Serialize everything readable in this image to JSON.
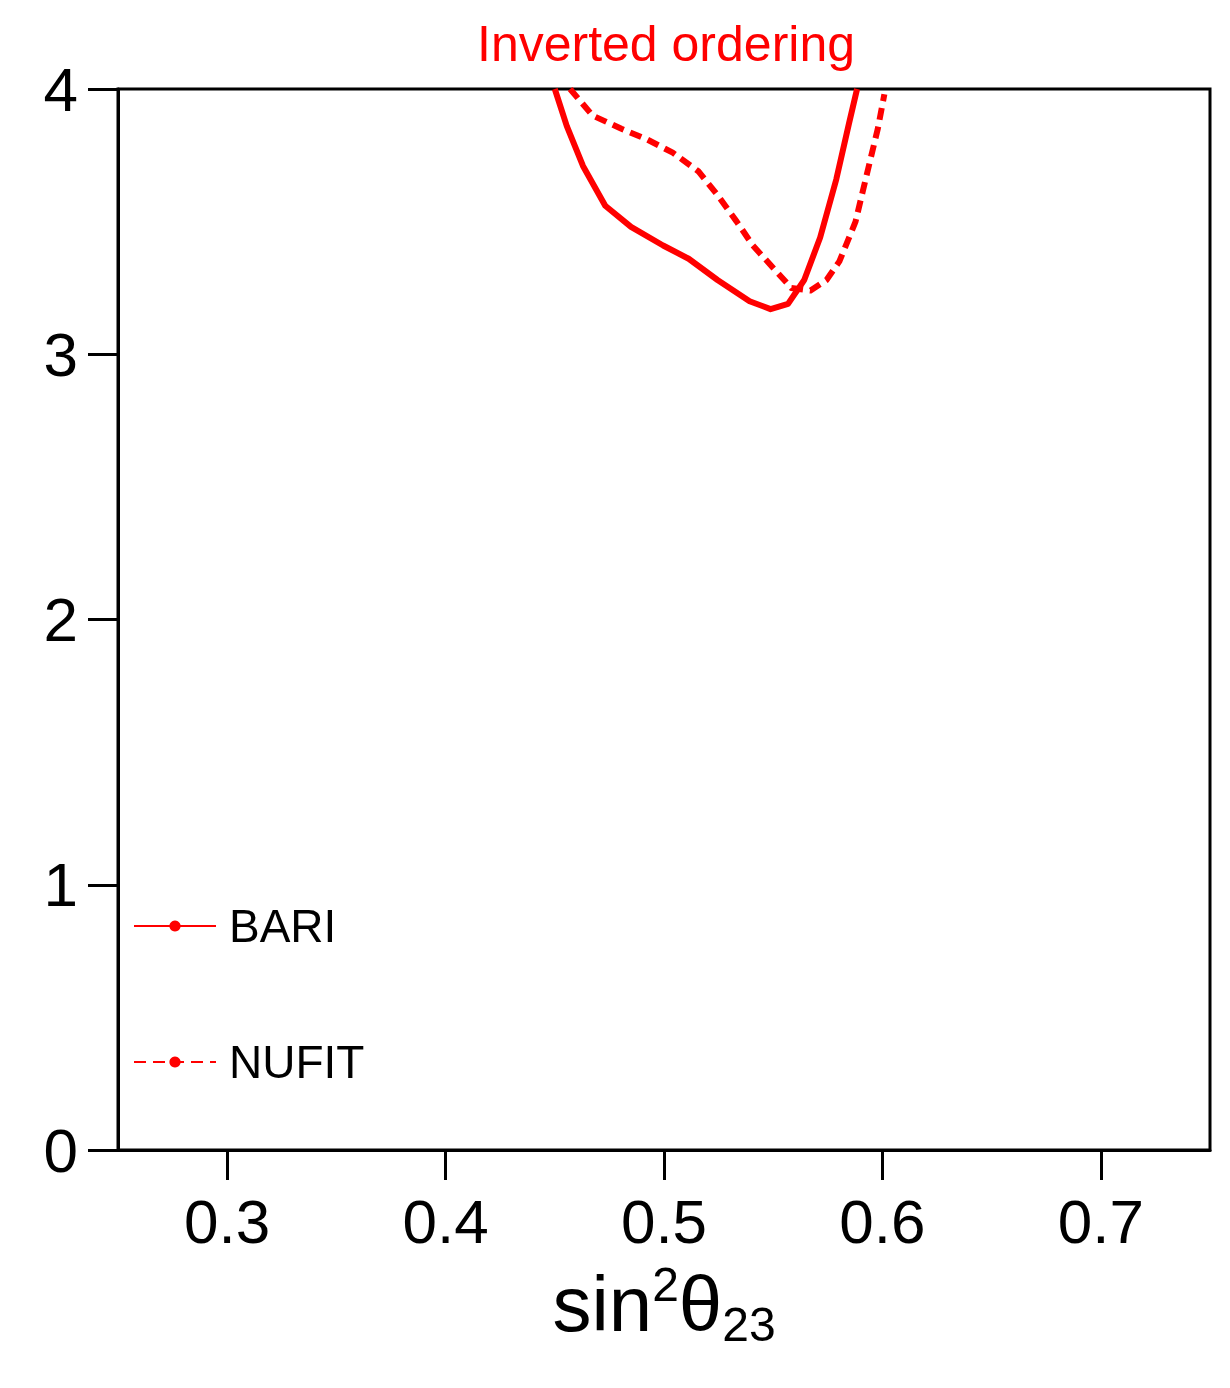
{
  "chart_data": {
    "type": "line",
    "title": "Inverted ordering",
    "xlabel": "sin$^{2}$θ$_{23}$",
    "xlim": [
      0.25,
      0.75
    ],
    "ylim": [
      0,
      4
    ],
    "xticks": [
      0.3,
      0.4,
      0.5,
      0.6,
      0.7
    ],
    "yticks": [
      0,
      1,
      2,
      3,
      4
    ],
    "grid": false,
    "legend": "bottom left",
    "marker": "none",
    "series": [
      {
        "name": "BARI",
        "color": "#ff0000",
        "line_style": "solid",
        "x": [
          0.45,
          0.4555,
          0.4629,
          0.4731,
          0.4849,
          0.4996,
          0.5113,
          0.5245,
          0.5392,
          0.5488,
          0.5568,
          0.5642,
          0.5715,
          0.5789,
          0.5847,
          0.5884
        ],
        "values": [
          4.0,
          3.86,
          3.71,
          3.56,
          3.48,
          3.41,
          3.36,
          3.28,
          3.2,
          3.17,
          3.19,
          3.28,
          3.44,
          3.66,
          3.87,
          4.0
        ]
      },
      {
        "name": "NUFIT",
        "color": "#ff0000",
        "line_style": "dashed",
        "x": [
          0.457,
          0.4673,
          0.4805,
          0.4922,
          0.504,
          0.5157,
          0.5245,
          0.5333,
          0.5407,
          0.5495,
          0.5583,
          0.5671,
          0.5744,
          0.5803,
          0.5877,
          0.5935,
          0.5979,
          0.6009
        ],
        "values": [
          4.0,
          3.9,
          3.85,
          3.81,
          3.76,
          3.69,
          3.6,
          3.5,
          3.41,
          3.33,
          3.25,
          3.24,
          3.28,
          3.35,
          3.5,
          3.7,
          3.85,
          3.98
        ]
      }
    ]
  }
}
